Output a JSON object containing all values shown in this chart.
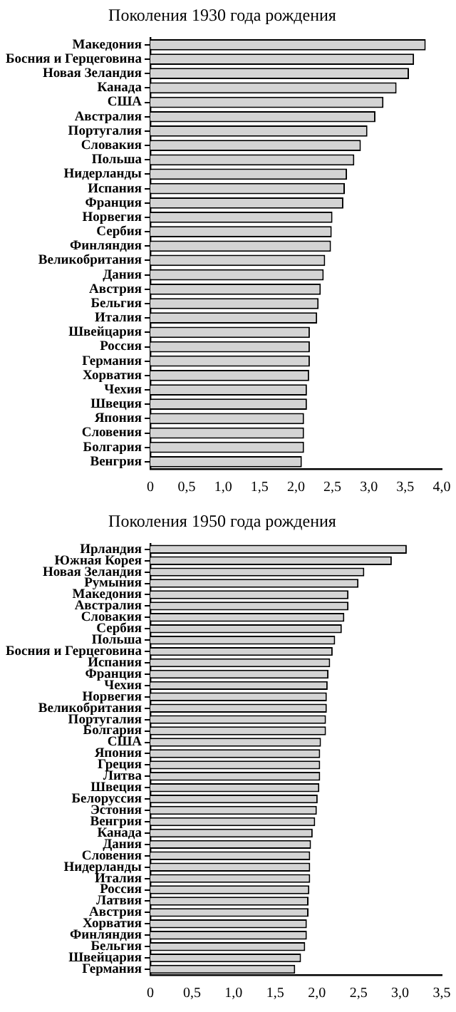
{
  "chart_data": [
    {
      "type": "bar",
      "orientation": "horizontal",
      "title": "Поколения 1930 года рождения",
      "color": "#d4d4d4",
      "grid": false,
      "legend": false,
      "categories": [
        "Македония",
        "Босния и Герцеговина",
        "Новая Зеландия",
        "Канада",
        "США",
        "Австралия",
        "Португалия",
        "Словакия",
        "Польша",
        "Нидерланды",
        "Испания",
        "Франция",
        "Норвегия",
        "Сербия",
        "Финляндия",
        "Великобритания",
        "Дания",
        "Австрия",
        "Бельгия",
        "Италия",
        "Швейцария",
        "Россия",
        "Германия",
        "Хорватия",
        "Чехия",
        "Швеция",
        "Япония",
        "Словения",
        "Болгария",
        "Венгрия"
      ],
      "values": [
        3.78,
        3.62,
        3.55,
        3.38,
        3.2,
        3.09,
        2.98,
        2.89,
        2.8,
        2.7,
        2.67,
        2.65,
        2.5,
        2.49,
        2.48,
        2.4,
        2.38,
        2.34,
        2.31,
        2.29,
        2.19,
        2.19,
        2.19,
        2.18,
        2.15,
        2.15,
        2.11,
        2.11,
        2.11,
        2.08
      ],
      "xlim": [
        0,
        4
      ],
      "xticks": [
        0,
        {
          "value": 0.5,
          "label": "0,5"
        },
        {
          "value": 1,
          "label": "1,0"
        },
        {
          "value": 1.5,
          "label": "1,5"
        },
        {
          "value": 2,
          "label": "2,0"
        },
        {
          "value": 2.5,
          "label": "2,5"
        },
        {
          "value": 3,
          "label": "3,0"
        },
        {
          "value": 3.5,
          "label": "3,5"
        },
        {
          "value": 4,
          "label": "4,0"
        }
      ]
    },
    {
      "type": "bar",
      "orientation": "horizontal",
      "title": "Поколения 1950 года рождения",
      "color": "#d4d4d4",
      "grid": false,
      "legend": false,
      "categories": [
        "Ирландия",
        "Южная Корея",
        "Новая Зеландия",
        "Румыния",
        "Македония",
        "Австралия",
        "Словакия",
        "Сербия",
        "Польша",
        "Босния и Герцеговина",
        "Испания",
        "Франция",
        "Чехия",
        "Норвегия",
        "Великобритания",
        "Португалия",
        "Болгария",
        "США",
        "Япония",
        "Греция",
        "Литва",
        "Швеция",
        "Белоруссия",
        "Эстония",
        "Венгрия",
        "Канада",
        "Дания",
        "Словения",
        "Нидерланды",
        "Италия",
        "Россия",
        "Латвия",
        "Австрия",
        "Хорватия",
        "Финляндия",
        "Бельгия",
        "Швейцария",
        "Германия"
      ],
      "values": [
        3.08,
        2.9,
        2.57,
        2.5,
        2.38,
        2.38,
        2.33,
        2.3,
        2.22,
        2.19,
        2.16,
        2.14,
        2.13,
        2.12,
        2.12,
        2.11,
        2.11,
        2.05,
        2.04,
        2.04,
        2.04,
        2.03,
        2.01,
        2.0,
        1.98,
        1.95,
        1.93,
        1.92,
        1.92,
        1.92,
        1.91,
        1.9,
        1.9,
        1.88,
        1.88,
        1.86,
        1.81,
        1.74
      ],
      "xlim": [
        0,
        3.5
      ],
      "xticks": [
        0,
        {
          "value": 0.5,
          "label": "0,5"
        },
        {
          "value": 1,
          "label": "1,0"
        },
        {
          "value": 1.5,
          "label": "1,5"
        },
        {
          "value": 2,
          "label": "2,0"
        },
        {
          "value": 2.5,
          "label": "2,5"
        },
        {
          "value": 3,
          "label": "3,0"
        },
        {
          "value": 3.5,
          "label": "3,5"
        }
      ]
    }
  ]
}
